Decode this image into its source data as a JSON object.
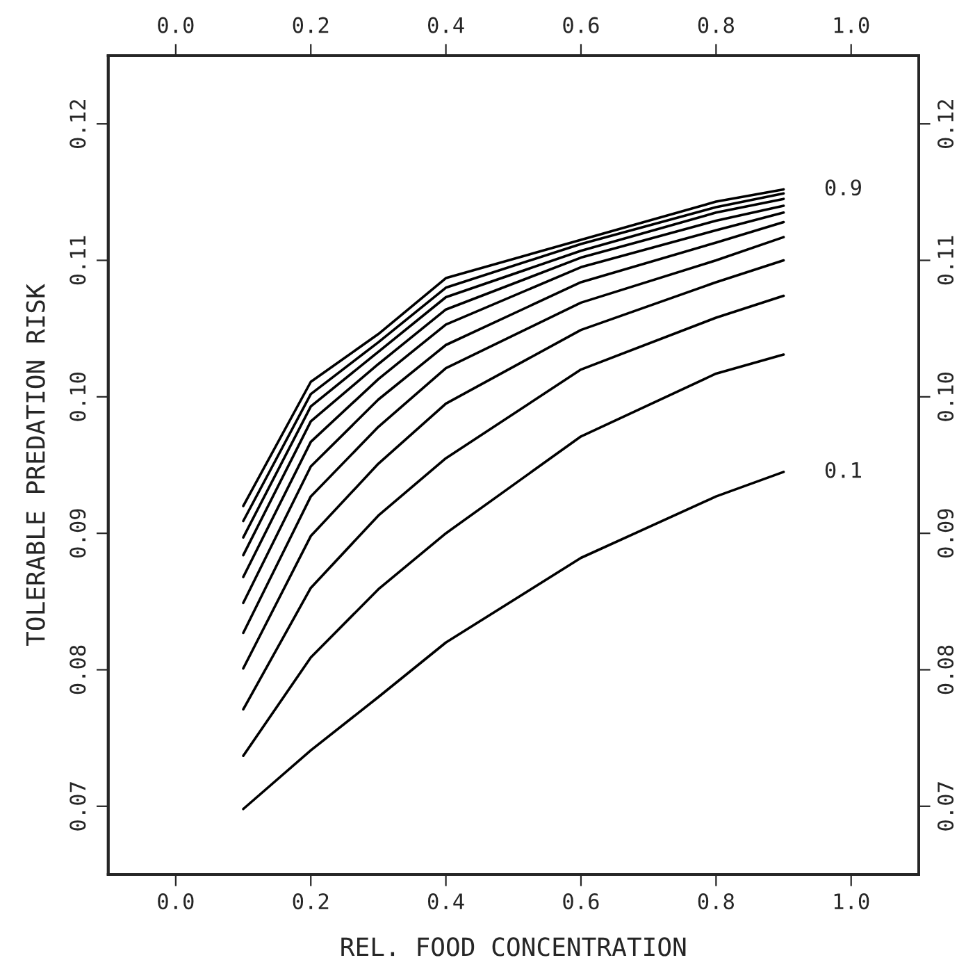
{
  "chart_data": {
    "type": "line",
    "xlabel": "REL. FOOD CONCENTRATION",
    "ylabel": "TOLERABLE PREDATION RISK",
    "x": [
      0.1,
      0.2,
      0.3,
      0.4,
      0.6,
      0.8,
      0.9
    ],
    "series": [
      {
        "name": "0.1",
        "color": "#000000",
        "values": [
          0.0698,
          0.0741,
          0.078,
          0.082,
          0.0882,
          0.0927,
          0.0945
        ]
      },
      {
        "color": "#000000",
        "values": [
          0.0737,
          0.0809,
          0.0859,
          0.09,
          0.0971,
          0.1017,
          0.1031
        ]
      },
      {
        "color": "#000000",
        "values": [
          0.0771,
          0.086,
          0.0913,
          0.0955,
          0.102,
          0.1058,
          0.1074
        ]
      },
      {
        "color": "#000000",
        "values": [
          0.0801,
          0.0898,
          0.0951,
          0.0995,
          0.1049,
          0.1084,
          0.11
        ]
      },
      {
        "color": "#000000",
        "values": [
          0.0827,
          0.0927,
          0.0978,
          0.1021,
          0.1069,
          0.11,
          0.1117
        ]
      },
      {
        "color": "#000000",
        "values": [
          0.0849,
          0.0949,
          0.0998,
          0.1038,
          0.1084,
          0.1113,
          0.1128
        ]
      },
      {
        "color": "#000000",
        "values": [
          0.0868,
          0.0967,
          0.1013,
          0.1053,
          0.1095,
          0.1122,
          0.1135
        ]
      },
      {
        "color": "#000000",
        "values": [
          0.0884,
          0.0982,
          0.1024,
          0.1064,
          0.1102,
          0.1129,
          0.114
        ]
      },
      {
        "color": "#000000",
        "values": [
          0.0897,
          0.0993,
          0.1033,
          0.1073,
          0.1107,
          0.1135,
          0.1145
        ]
      },
      {
        "color": "#000000",
        "values": [
          0.0909,
          0.1002,
          0.104,
          0.108,
          0.1112,
          0.1139,
          0.1149
        ]
      },
      {
        "name": "0.9",
        "color": "#000000",
        "values": [
          0.092,
          0.1011,
          0.1046,
          0.1087,
          0.1115,
          0.1143,
          0.1152
        ]
      }
    ],
    "xlim": [
      -0.1,
      1.1
    ],
    "xticks": [
      {
        "value": 0,
        "label": "0.0"
      },
      0.2,
      0.4,
      0.6,
      0.8,
      {
        "value": 1,
        "label": "1.0"
      }
    ],
    "x2lim": [
      -0.1,
      1.1
    ],
    "x2ticks": [
      {
        "value": 0,
        "label": "0.0"
      },
      0.2,
      0.4,
      0.6,
      0.8,
      {
        "value": 1,
        "label": "1.0"
      }
    ],
    "ylim": [
      0.065,
      0.125
    ],
    "yticks": [
      0.07,
      0.08,
      0.09,
      {
        "value": 0.1,
        "label": "0.10"
      },
      0.11,
      0.12
    ],
    "y2lim": [
      0.065,
      0.125
    ],
    "y2ticks": [
      0.07,
      0.08,
      0.09,
      {
        "value": 0.1,
        "label": "0.10"
      },
      0.11,
      0.12
    ],
    "grid": false,
    "legend": false,
    "marker": "none",
    "line_style": "solid"
  }
}
